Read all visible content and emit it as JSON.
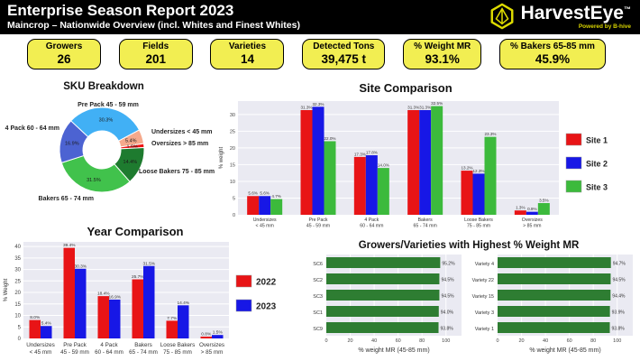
{
  "header": {
    "title": "Enterprise Season Report 2023",
    "subtitle": "Maincrop – Nationwide Overview (incl. Whites and Finest Whites)",
    "brand": "HarvestEye",
    "brand_tm": "™",
    "powered_by": "Powered by B-hive"
  },
  "kpis": [
    {
      "label": "Growers",
      "value": "26"
    },
    {
      "label": "Fields",
      "value": "201"
    },
    {
      "label": "Varieties",
      "value": "14"
    },
    {
      "label": "Detected Tons",
      "value": "39,475 t"
    },
    {
      "label": "% Weight MR",
      "value": "93.1%"
    },
    {
      "label": "% Bakers 65-85 mm",
      "value": "45.9%"
    }
  ],
  "colors": {
    "header_black": "#000000",
    "kpi_yellow": "#f2ee52",
    "brand_yellow": "#dedc00",
    "site1_red": "#e81416",
    "site2_blue": "#1717e6",
    "site3_green": "#3cba3c",
    "hbar_green": "#2e7d32",
    "plot_background": "#eaeaf2"
  },
  "chart_data": [
    {
      "id": "sku_breakdown",
      "type": "pie",
      "donut": true,
      "title": "SKU Breakdown",
      "slices": [
        {
          "label": "Pre Pack 45 - 59 mm",
          "value": 30.3,
          "color": "#41b0f5"
        },
        {
          "label": "Undersizes < 45 mm",
          "value": 5.4,
          "color": "#f5a98c"
        },
        {
          "label": "Oversizes > 85 mm",
          "value": 1.5,
          "color": "#f01414"
        },
        {
          "label": "Loose Bakers 75 - 85 mm",
          "value": 14.4,
          "color": "#1e7b2f"
        },
        {
          "label": "Bakers 65 - 74 mm",
          "value": 31.5,
          "color": "#41c24c"
        },
        {
          "label": "4 Pack 60 - 64 mm",
          "value": 16.9,
          "color": "#4c63d2"
        }
      ]
    },
    {
      "id": "site_comparison",
      "type": "bar",
      "title": "Site Comparison",
      "ylabel": "% weight",
      "ylim": [
        0,
        34
      ],
      "yticks": [
        0,
        5,
        10,
        15,
        20,
        25,
        30
      ],
      "grid": true,
      "legend_position": "right",
      "categories": [
        [
          "Undersizes",
          "< 45 mm"
        ],
        [
          "Pre Pack",
          "45 - 59 mm"
        ],
        [
          "4 Pack",
          "60 - 64 mm"
        ],
        [
          "Bakers",
          "65 - 74 mm"
        ],
        [
          "Loose Bakers",
          "75 - 85 mm"
        ],
        [
          "Oversizes",
          "> 85 mm"
        ]
      ],
      "series": [
        {
          "name": "Site 1",
          "color": "#e81416",
          "values": [
            5.6,
            31.3,
            17.3,
            31.3,
            13.2,
            1.3
          ]
        },
        {
          "name": "Site 2",
          "color": "#1717e6",
          "values": [
            5.6,
            32.3,
            17.8,
            31.3,
            12.3,
            0.9
          ]
        },
        {
          "name": "Site 3",
          "color": "#3cba3c",
          "values": [
            4.7,
            22.0,
            14.0,
            32.5,
            23.3,
            3.5
          ]
        }
      ]
    },
    {
      "id": "year_comparison",
      "type": "bar",
      "title": "Year Comparison",
      "ylabel": "% Weight",
      "ylim": [
        0,
        42
      ],
      "yticks": [
        0,
        5,
        10,
        15,
        20,
        25,
        30,
        35,
        40
      ],
      "grid": true,
      "legend_position": "right",
      "categories": [
        [
          "Undersizes",
          "< 45 mm"
        ],
        [
          "Pre Pack",
          "45 - 59 mm"
        ],
        [
          "4 Pack",
          "60 - 64 mm"
        ],
        [
          "Bakers",
          "65 - 74 mm"
        ],
        [
          "Loose Bakers",
          "75 - 85 mm"
        ],
        [
          "Oversizes",
          "> 85 mm"
        ]
      ],
      "series": [
        {
          "name": "2022",
          "color": "#e81416",
          "values": [
            8.0,
            39.4,
            18.4,
            25.7,
            7.7,
            0.8
          ]
        },
        {
          "name": "2023",
          "color": "#1717e6",
          "values": [
            5.4,
            30.3,
            16.9,
            31.5,
            14.4,
            1.5
          ]
        }
      ]
    },
    {
      "id": "growers_mr",
      "type": "hbar",
      "title": "Growers/Varieties with Highest % Weight MR",
      "xlabel": "% weight MR (45-85 mm)",
      "xlim": [
        0,
        113
      ],
      "xticks": [
        0,
        20,
        40,
        60,
        80,
        100
      ],
      "color": "#2e7d32",
      "bars": [
        {
          "label": "SC6",
          "value": 95.2
        },
        {
          "label": "SC2",
          "value": 94.5
        },
        {
          "label": "SC3",
          "value": 94.5
        },
        {
          "label": "SC1",
          "value": 94.0
        },
        {
          "label": "SC9",
          "value": 93.8
        }
      ]
    },
    {
      "id": "varieties_mr",
      "type": "hbar",
      "xlabel": "% weight MR (45-85 mm)",
      "xlim": [
        0,
        113
      ],
      "xticks": [
        0,
        20,
        40,
        60,
        80,
        100
      ],
      "color": "#2e7d32",
      "bars": [
        {
          "label": "Variety 4",
          "value": 94.7
        },
        {
          "label": "Variety 22",
          "value": 94.5
        },
        {
          "label": "Variety 15",
          "value": 94.4
        },
        {
          "label": "Variety 3",
          "value": 93.9
        },
        {
          "label": "Variety 1",
          "value": 93.8
        }
      ]
    }
  ]
}
